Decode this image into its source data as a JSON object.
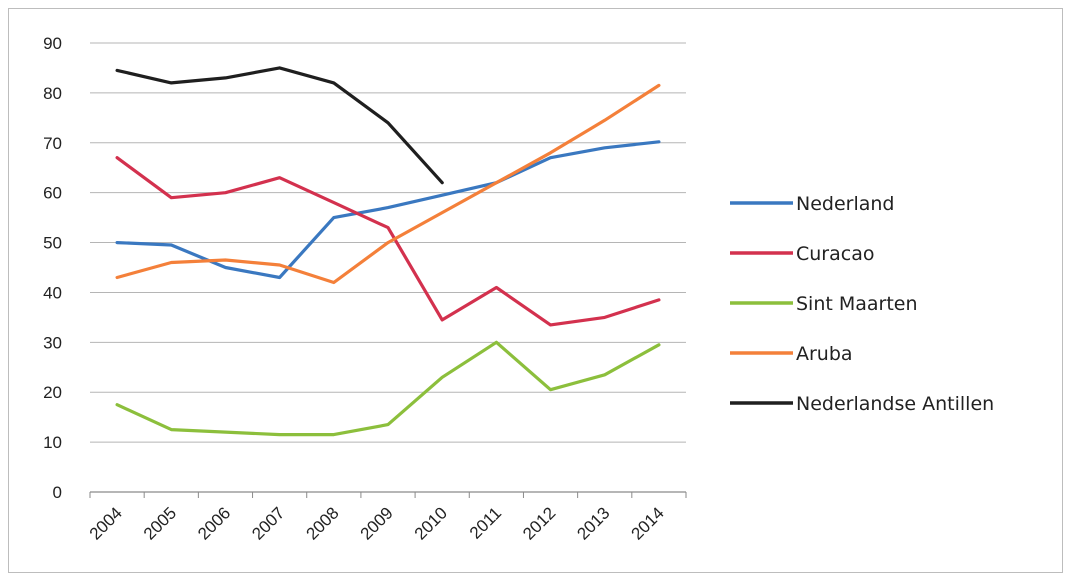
{
  "chart_data": {
    "type": "line",
    "title": "",
    "xlabel": "",
    "ylabel": "",
    "x": [
      "2004",
      "2005",
      "2006",
      "2007",
      "2008",
      "2009",
      "2010",
      "2011",
      "2012",
      "2013",
      "2014"
    ],
    "ylim": [
      0,
      90
    ],
    "yticks": [
      "0",
      "10",
      "20",
      "30",
      "40",
      "50",
      "60",
      "70",
      "80",
      "90"
    ],
    "grid": true,
    "legend_position": "right",
    "series": [
      {
        "name": "Nederland",
        "color": "#3a78c0",
        "values": [
          50,
          49.5,
          45,
          43,
          55,
          57,
          59.5,
          62,
          67,
          69,
          70.2
        ]
      },
      {
        "name": "Curacao",
        "color": "#d3314e",
        "values": [
          67,
          59,
          60,
          63,
          58,
          53,
          34.5,
          41,
          33.5,
          35,
          38.5
        ]
      },
      {
        "name": "Sint Maarten",
        "color": "#8cbf3c",
        "values": [
          17.5,
          12.5,
          12,
          11.5,
          11.5,
          13.5,
          23,
          30,
          20.5,
          23.5,
          29.5
        ]
      },
      {
        "name": "Aruba",
        "color": "#f4803a",
        "values": [
          43,
          46,
          46.5,
          45.5,
          42,
          50,
          56,
          62,
          68,
          74.5,
          81.5
        ]
      },
      {
        "name": "Nederlandse Antillen",
        "color": "#1f1f1f",
        "values": [
          84.5,
          82,
          83,
          85,
          82,
          74,
          62,
          null,
          null,
          null,
          null
        ]
      }
    ]
  }
}
